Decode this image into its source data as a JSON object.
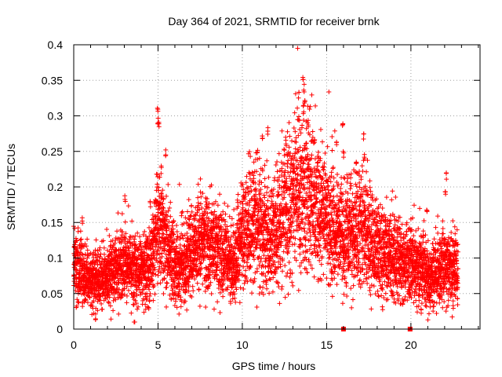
{
  "chart_data": {
    "type": "scatter",
    "title": "Day 364 of 2021, SRMTID for receiver brnk",
    "xlabel": "GPS time / hours",
    "ylabel": "SRMTID / TECUs",
    "xlim": [
      0,
      24.1
    ],
    "ylim": [
      0,
      0.4
    ],
    "x_ticks": [
      0,
      5,
      10,
      15,
      20
    ],
    "y_ticks": [
      0,
      0.05,
      0.1,
      0.15,
      0.2,
      0.25,
      0.3,
      0.35,
      0.4
    ],
    "x_tick_labels": [
      "0",
      "5",
      "10",
      "15",
      "20"
    ],
    "y_tick_labels": [
      "0",
      "0.05",
      "0.1",
      "0.15",
      "0.2",
      "0.25",
      "0.3",
      "0.35",
      "0.4"
    ],
    "grid": true,
    "marker": "plus",
    "color": "#ff0000",
    "zero_markers_x": [
      16.0,
      19.95
    ],
    "series": [
      {
        "name": "SRMTID",
        "trend": {
          "x": [
            0,
            0.5,
            1.0,
            1.5,
            2.0,
            2.5,
            3.0,
            3.5,
            4.0,
            4.5,
            5.0,
            5.5,
            6.0,
            6.5,
            7.0,
            7.5,
            8.0,
            8.5,
            9.0,
            9.5,
            10.0,
            10.5,
            11.0,
            11.5,
            12.0,
            12.5,
            13.0,
            13.5,
            14.0,
            14.5,
            15.0,
            15.5,
            16.0,
            16.5,
            17.0,
            17.5,
            18.0,
            18.5,
            19.0,
            19.5,
            20.0,
            20.5,
            21.0,
            21.5,
            22.0,
            22.5,
            22.8
          ],
          "y": [
            0.085,
            0.08,
            0.065,
            0.07,
            0.075,
            0.085,
            0.09,
            0.085,
            0.08,
            0.085,
            0.14,
            0.12,
            0.085,
            0.09,
            0.11,
            0.125,
            0.12,
            0.11,
            0.1,
            0.09,
            0.13,
            0.15,
            0.145,
            0.13,
            0.14,
            0.165,
            0.18,
            0.2,
            0.185,
            0.17,
            0.15,
            0.14,
            0.125,
            0.14,
            0.145,
            0.13,
            0.115,
            0.105,
            0.1,
            0.09,
            0.09,
            0.085,
            0.075,
            0.08,
            0.09,
            0.085,
            0.08
          ]
        },
        "spikes": [
          {
            "x": 0.5,
            "y": 0.16
          },
          {
            "x": 3.05,
            "y": 0.19
          },
          {
            "x": 4.55,
            "y": 0.18
          },
          {
            "x": 4.98,
            "y": 0.315
          },
          {
            "x": 5.0,
            "y": 0.3
          },
          {
            "x": 5.05,
            "y": 0.295
          },
          {
            "x": 5.45,
            "y": 0.255
          },
          {
            "x": 5.2,
            "y": 0.23
          },
          {
            "x": 10.9,
            "y": 0.255
          },
          {
            "x": 11.2,
            "y": 0.275
          },
          {
            "x": 11.5,
            "y": 0.285
          },
          {
            "x": 12.6,
            "y": 0.27
          },
          {
            "x": 13.35,
            "y": 0.335
          },
          {
            "x": 13.6,
            "y": 0.36
          },
          {
            "x": 13.65,
            "y": 0.345
          },
          {
            "x": 13.7,
            "y": 0.325
          },
          {
            "x": 13.9,
            "y": 0.295
          },
          {
            "x": 15.6,
            "y": 0.27
          },
          {
            "x": 15.95,
            "y": 0.29
          },
          {
            "x": 16.0,
            "y": 0.25
          },
          {
            "x": 16.75,
            "y": 0.245
          },
          {
            "x": 17.2,
            "y": 0.275
          },
          {
            "x": 17.25,
            "y": 0.25
          },
          {
            "x": 20.95,
            "y": 0.17
          },
          {
            "x": 22.1,
            "y": 0.22
          },
          {
            "x": 22.05,
            "y": 0.2
          },
          {
            "x": 3.6,
            "y": 0.015
          },
          {
            "x": 1.3,
            "y": 0.022
          },
          {
            "x": 20.6,
            "y": 0.032
          },
          {
            "x": 22.5,
            "y": 0.04
          }
        ]
      }
    ]
  }
}
